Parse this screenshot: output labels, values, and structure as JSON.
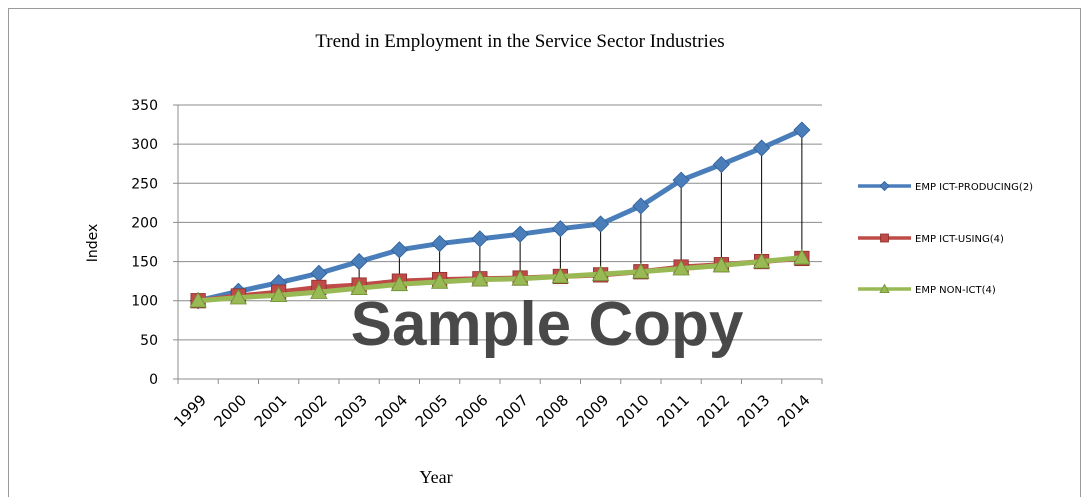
{
  "chart_data": {
    "type": "line",
    "title": "Trend in Employment in the Service Sector Industries",
    "xlabel": "Year",
    "ylabel": "Index",
    "ylim": [
      0,
      350
    ],
    "yticks": [
      0,
      50,
      100,
      150,
      200,
      250,
      300,
      350
    ],
    "grid": true,
    "legend_position": "right",
    "watermark": "Sample Copy",
    "categories": [
      "1999",
      "2000",
      "2001",
      "2002",
      "2003",
      "2004",
      "2005",
      "2006",
      "2007",
      "2008",
      "2009",
      "2010",
      "2011",
      "2012",
      "2013",
      "2014"
    ],
    "drop_lines": true,
    "series": [
      {
        "name": "EMP ICT-PRODUCING(2)",
        "color": "#4a7ebb",
        "marker": "diamond",
        "values": [
          100,
          112,
          123,
          135,
          150,
          165,
          173,
          179,
          185,
          192,
          198,
          221,
          254,
          274,
          295,
          318
        ]
      },
      {
        "name": "EMP ICT-USING(4)",
        "color": "#be4b48",
        "marker": "square",
        "values": [
          100,
          106,
          111,
          117,
          120,
          125,
          127,
          128,
          129,
          131,
          133,
          137,
          143,
          146,
          150,
          154
        ]
      },
      {
        "name": "EMP NON-ICT(4)",
        "color": "#98b954",
        "marker": "triangle",
        "values": [
          100,
          104,
          107,
          111,
          116,
          121,
          124,
          127,
          128,
          131,
          134,
          137,
          141,
          145,
          150,
          155
        ]
      }
    ]
  }
}
